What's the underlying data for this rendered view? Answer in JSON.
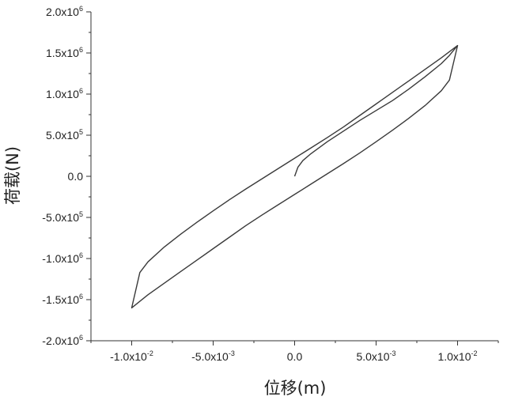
{
  "chart_data": {
    "type": "line",
    "xlabel": "位移(m)",
    "ylabel": "荷载(N)",
    "xlim": [
      -0.0125,
      0.0125
    ],
    "ylim": [
      -2000000,
      2000000
    ],
    "grid": false,
    "x_ticks": [
      {
        "value": -0.01,
        "label": "-1.0x10",
        "exp": "-2"
      },
      {
        "value": -0.005,
        "label": "-5.0x10",
        "exp": "-3"
      },
      {
        "value": 0,
        "label": "0.0",
        "exp": ""
      },
      {
        "value": 0.005,
        "label": "5.0x10",
        "exp": "-3"
      },
      {
        "value": 0.01,
        "label": "1.0x10",
        "exp": "-2"
      }
    ],
    "y_ticks": [
      {
        "value": 2000000,
        "label": "2.0x10",
        "exp": "6"
      },
      {
        "value": 1500000,
        "label": "1.5x10",
        "exp": "6"
      },
      {
        "value": 1000000,
        "label": "1.0x10",
        "exp": "6"
      },
      {
        "value": 500000,
        "label": "5.0x10",
        "exp": "5"
      },
      {
        "value": 0,
        "label": "0.0",
        "exp": ""
      },
      {
        "value": -500000,
        "label": "-5.0x10",
        "exp": "5"
      },
      {
        "value": -1000000,
        "label": "-1.0x10",
        "exp": "6"
      },
      {
        "value": -1500000,
        "label": "-1.5x10",
        "exp": "6"
      },
      {
        "value": -2000000,
        "label": "-2.0x10",
        "exp": "6"
      }
    ],
    "series": [
      {
        "color": "#3a3a3a",
        "x": [
          0,
          0.0002,
          0.0005,
          0.001,
          0.002,
          0.003,
          0.004,
          0.005,
          0.006,
          0.007,
          0.008,
          0.009,
          0.0095,
          0.01,
          0.009,
          0.008,
          0.007,
          0.006,
          0.005,
          0.004,
          0.003,
          0.002,
          0.001,
          0,
          -0.001,
          -0.002,
          -0.003,
          -0.004,
          -0.005,
          -0.006,
          -0.007,
          -0.008,
          -0.009,
          -0.0095,
          -0.01,
          -0.009,
          -0.008,
          -0.007,
          -0.006,
          -0.005,
          -0.004,
          -0.003,
          -0.002,
          -0.001,
          0,
          0.001,
          0.002,
          0.003,
          0.004,
          0.005,
          0.006,
          0.007,
          0.008,
          0.009,
          0.0095,
          0.01
        ],
        "y": [
          0,
          110000,
          190000,
          275000,
          420000,
          550000,
          680000,
          800000,
          920000,
          1060000,
          1210000,
          1370000,
          1470000,
          1590000,
          1440000,
          1300000,
          1160000,
          1020000,
          880000,
          740000,
          600000,
          470000,
          345000,
          220000,
          95000,
          -30000,
          -155000,
          -285000,
          -420000,
          -560000,
          -705000,
          -860000,
          -1040000,
          -1170000,
          -1600000,
          -1440000,
          -1300000,
          -1160000,
          -1020000,
          -880000,
          -740000,
          -600000,
          -470000,
          -345000,
          -220000,
          -95000,
          30000,
          155000,
          285000,
          420000,
          560000,
          705000,
          860000,
          1040000,
          1170000,
          1590000
        ]
      }
    ]
  }
}
